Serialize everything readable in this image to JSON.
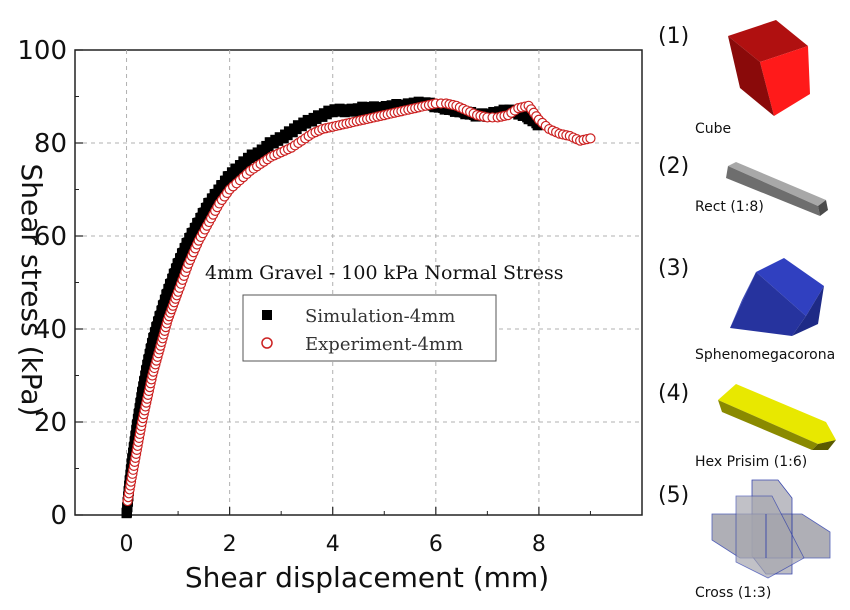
{
  "chart_data": {
    "type": "scatter",
    "title": "4mm Gravel - 100 kPa Normal Stress",
    "xlabel": "Shear displacement (mm)",
    "ylabel": "Shear stress (kPa)",
    "xlim": [
      -1,
      10
    ],
    "ylim": [
      0,
      100
    ],
    "xticks": [
      0,
      2,
      4,
      6,
      8
    ],
    "yticks": [
      0,
      20,
      40,
      60,
      80,
      100
    ],
    "grid": true,
    "legend_position": "center",
    "series": [
      {
        "name": "Simulation-4mm",
        "marker": "filled-square",
        "color": "#000000",
        "x": [
          0,
          0.05,
          0.1,
          0.2,
          0.3,
          0.4,
          0.5,
          0.6,
          0.8,
          1.0,
          1.2,
          1.4,
          1.6,
          1.8,
          2.0,
          2.2,
          2.4,
          2.6,
          2.8,
          3.0,
          3.2,
          3.4,
          3.6,
          3.8,
          4.0,
          4.2,
          4.4,
          4.6,
          4.8,
          5.0,
          5.2,
          5.4,
          5.6,
          5.8,
          6.0,
          6.2,
          6.4,
          6.6,
          6.8,
          7.0,
          7.2,
          7.4,
          7.6,
          7.8,
          8.0
        ],
        "y": [
          0,
          6,
          11,
          19,
          26,
          32,
          37,
          41,
          48,
          54,
          59,
          63,
          67,
          70,
          73,
          75,
          77,
          78,
          80,
          81,
          82.5,
          84,
          85,
          86,
          87,
          87,
          87,
          87.5,
          87.5,
          87.5,
          88,
          88,
          88.5,
          88.5,
          88,
          87.5,
          87,
          86.5,
          86,
          86,
          86.5,
          87,
          86.5,
          85.5,
          84
        ]
      },
      {
        "name": "Experiment-4mm",
        "marker": "open-circle",
        "color": "#cc2222",
        "x": [
          0.02,
          0.1,
          0.2,
          0.3,
          0.4,
          0.5,
          0.6,
          0.7,
          0.8,
          0.9,
          1.0,
          1.2,
          1.4,
          1.6,
          1.8,
          2.0,
          2.2,
          2.4,
          2.6,
          2.8,
          3.0,
          3.2,
          3.4,
          3.6,
          3.8,
          4.0,
          4.2,
          4.4,
          4.6,
          4.8,
          5.0,
          5.2,
          5.4,
          5.6,
          5.8,
          6.0,
          6.2,
          6.4,
          6.6,
          6.8,
          7.0,
          7.2,
          7.4,
          7.6,
          7.8,
          8.0,
          8.2,
          8.4,
          8.6,
          8.8,
          9.0
        ],
        "y": [
          3,
          8,
          14,
          20,
          25,
          30,
          34,
          38,
          42,
          45,
          48,
          54,
          59,
          63,
          67,
          70,
          72,
          74,
          75.5,
          77,
          78,
          79,
          80.5,
          82,
          83,
          83.5,
          84,
          84.5,
          85,
          85.5,
          86,
          86.5,
          87,
          87.5,
          88,
          88.5,
          88.5,
          88,
          87,
          86,
          85.5,
          85.5,
          86,
          87.5,
          88,
          85,
          83,
          82,
          81.5,
          80.5,
          81
        ]
      }
    ]
  },
  "shapes": [
    {
      "number": "(1)",
      "name": "Cube",
      "icon": "cube-icon",
      "color": "#e01010"
    },
    {
      "number": "(2)",
      "name": "Rect (1:8)",
      "icon": "rect-prism-icon",
      "color": "#808080"
    },
    {
      "number": "(3)",
      "name": "Sphenomegacorona",
      "icon": "sphenomegacorona-icon",
      "color": "#2a3aa8"
    },
    {
      "number": "(4)",
      "name": "Hex Prisim (1:6)",
      "icon": "hex-prism-icon",
      "color": "#d8d800"
    },
    {
      "number": "(5)",
      "name": "Cross (1:3)",
      "icon": "cross-icon",
      "color": "#a8a8b0"
    }
  ]
}
